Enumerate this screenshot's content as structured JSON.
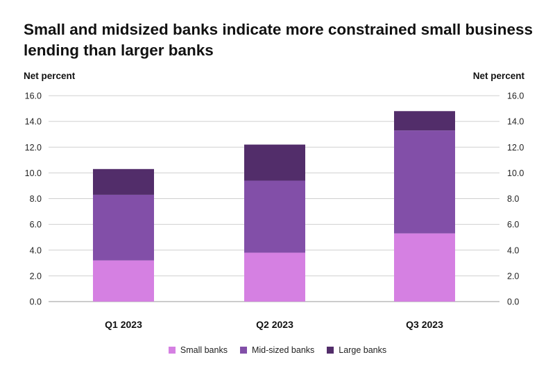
{
  "chart_data": {
    "type": "bar",
    "stacked": true,
    "title": "Small and midsized banks indicate more constrained small business lending than larger banks",
    "ylabel_left": "Net percent",
    "ylabel_right": "Net percent",
    "ylim": [
      0,
      16
    ],
    "yticks": [
      "0.0",
      "2.0",
      "4.0",
      "6.0",
      "8.0",
      "10.0",
      "12.0",
      "14.0",
      "16.0"
    ],
    "ytick_values": [
      0,
      2,
      4,
      6,
      8,
      10,
      12,
      14,
      16
    ],
    "categories": [
      "Q1 2023",
      "Q2 2023",
      "Q3 2023"
    ],
    "series": [
      {
        "name": "Small banks",
        "color": "#d580e2",
        "values": [
          3.2,
          3.8,
          5.3
        ]
      },
      {
        "name": "Mid-sized banks",
        "color": "#824fa8",
        "values": [
          5.1,
          5.6,
          8.0
        ]
      },
      {
        "name": "Large banks",
        "color": "#522d6a",
        "values": [
          2.0,
          2.8,
          1.5
        ]
      }
    ],
    "legend_position": "bottom-center",
    "grid": true
  }
}
